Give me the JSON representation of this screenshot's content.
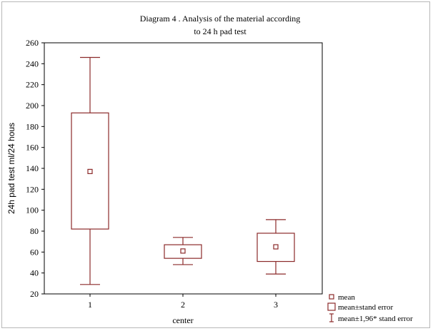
{
  "chart_data": {
    "type": "box",
    "title_line1": "Diagram 4 . Analysis of the material according",
    "title_line2": "to 24 h pad test",
    "xlabel": "center",
    "ylabel": "24h pad test ml/24 hous",
    "ylim": [
      20,
      260
    ],
    "yticks": [
      20,
      40,
      60,
      80,
      100,
      120,
      140,
      160,
      180,
      200,
      220,
      240,
      260
    ],
    "categories": [
      "1",
      "2",
      "3"
    ],
    "series": [
      {
        "category": "1",
        "mean": 137,
        "se_low": 82,
        "se_high": 193,
        "ci_low": 29,
        "ci_high": 246
      },
      {
        "category": "2",
        "mean": 61,
        "se_low": 54,
        "se_high": 67,
        "ci_low": 48,
        "ci_high": 74
      },
      {
        "category": "3",
        "mean": 65,
        "se_low": 51,
        "se_high": 78,
        "ci_low": 39,
        "ci_high": 91
      }
    ],
    "legend": {
      "position": "bottom-right",
      "items": [
        "mean",
        "mean±stand error",
        "mean±1,96* stand error"
      ]
    },
    "colors": {
      "mark": "#8b2a2a",
      "axis": "#000000",
      "border": "#b8b8b8"
    }
  }
}
